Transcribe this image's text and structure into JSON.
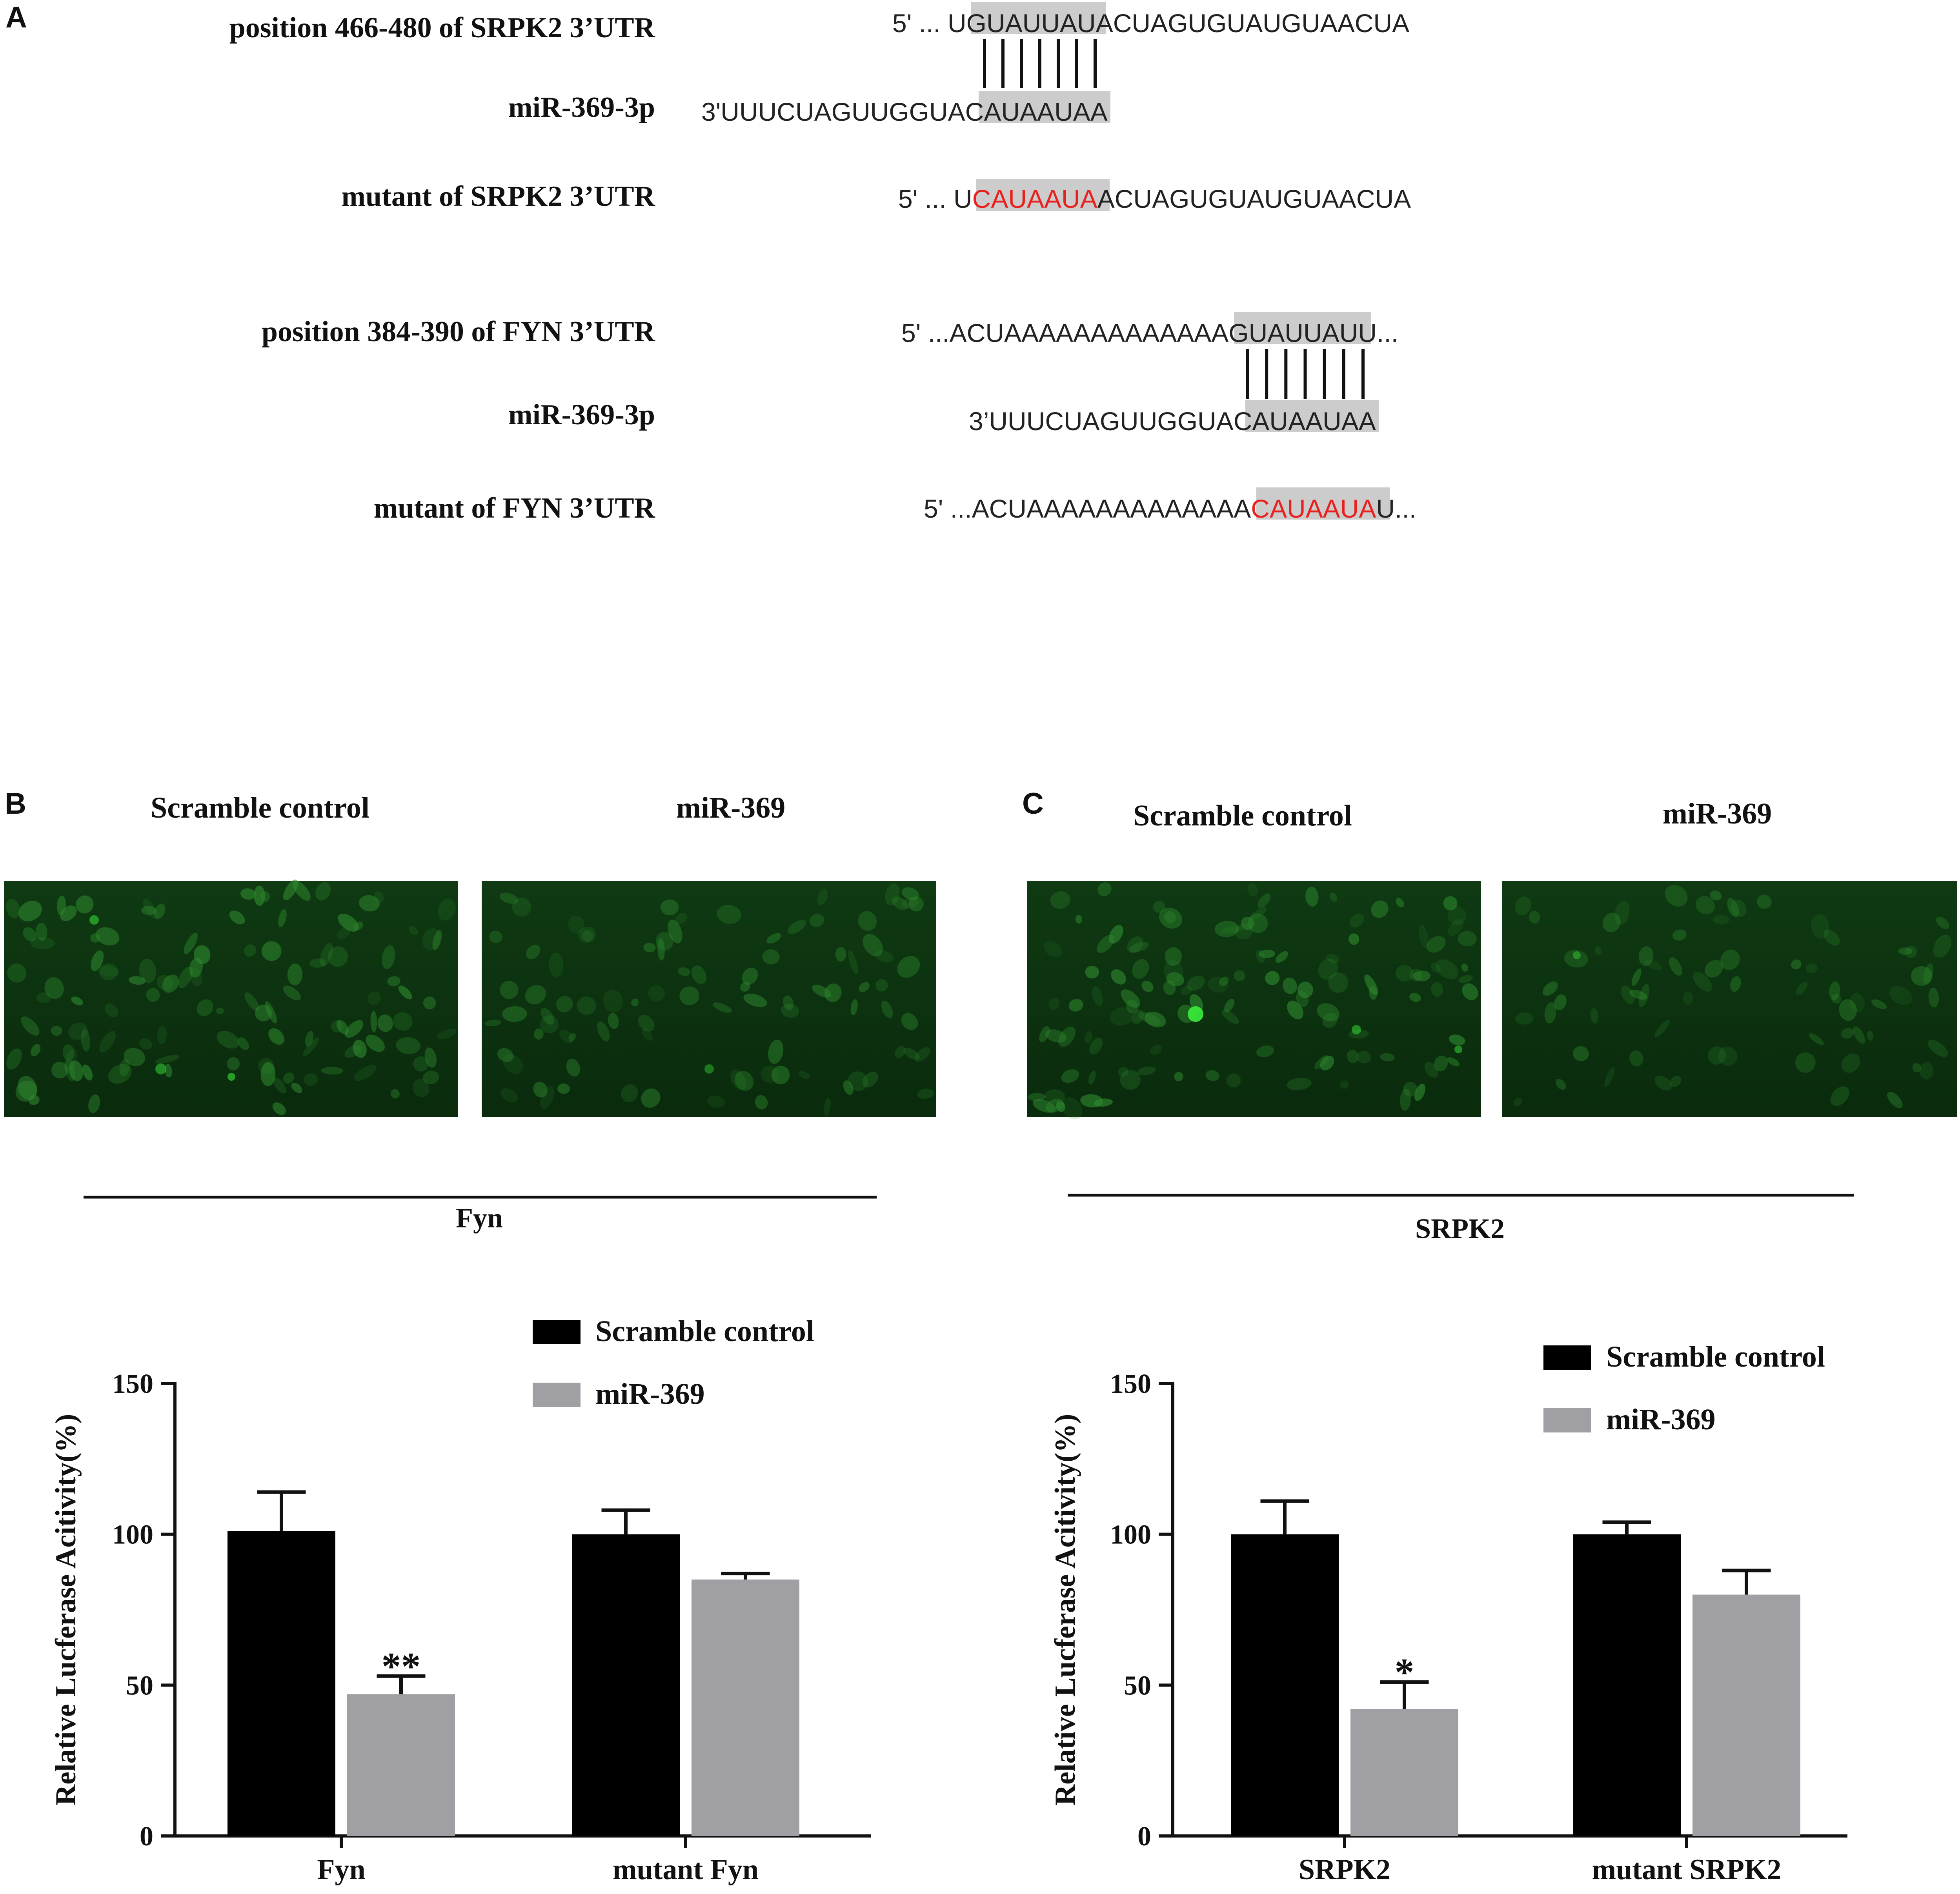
{
  "colors": {
    "scramble": "#000000",
    "mir": "#a0a0a4",
    "seed_box": "#cccccc",
    "mutation": "#e8201e",
    "micrograph_bg": "#0d3410",
    "cell": "#2f8a2f",
    "bright_cell": "#39e639"
  },
  "panel_a": {
    "letter": "A",
    "srpk2": {
      "utr_label": "position 466-480 of SRPK2 3’UTR",
      "utr_seq": {
        "prefix": "5' ... U",
        "seed": "GUAUUAU",
        "suffix": "ACUAGUGUAUGUAACUA"
      },
      "mir_label": "miR-369-3p",
      "mir_seq": {
        "prefix": "3'UUUCUAGUUGGUA",
        "seed": "CAUAAUA",
        "suffix": "A"
      },
      "mutant_label": "mutant of SRPK2 3’UTR",
      "mutant_seq": {
        "prefix": "5' ... U",
        "seed": "CAUAAUA",
        "suffix": "ACUAGUGUAUGUAACUA"
      }
    },
    "fyn": {
      "utr_label": "position 384-390 of FYN 3’UTR",
      "utr_seq": {
        "prefix": "5' ...ACUAAAAAAAAAAAAA",
        "seed": "GUAUUAU",
        "suffix": "U..."
      },
      "mir_label": "miR-369-3p",
      "mir_seq": {
        "prefix": "3’UUUCUAGUUGGUA",
        "seed": "CAUAAUA",
        "suffix": "A"
      },
      "mutant_label": "mutant of FYN 3’UTR",
      "mutant_seq": {
        "prefix": "5' ...ACUAAAAAAAAAAAAA",
        "seed": "CAUAAUA",
        "suffix": "U..."
      }
    }
  },
  "panel_b": {
    "letter": "B",
    "image_labels": [
      "Scramble control",
      "miR-369"
    ],
    "group_label": "Fyn"
  },
  "panel_c": {
    "letter": "C",
    "image_labels": [
      "Scramble control",
      "miR-369"
    ],
    "group_label": "SRPK2"
  },
  "chart_data": [
    {
      "type": "bar",
      "panel": "B",
      "ylabel": "Relative Lucferase Acitivity(%)",
      "ylim": [
        0,
        150
      ],
      "yticks": [
        0,
        50,
        100,
        150
      ],
      "categories": [
        "Fyn",
        "mutant Fyn"
      ],
      "legend_position": "top-right",
      "series": [
        {
          "name": "Scramble control",
          "values": [
            101,
            100
          ],
          "errors": [
            13,
            8
          ]
        },
        {
          "name": "miR-369",
          "values": [
            47,
            85
          ],
          "errors": [
            6,
            2
          ]
        }
      ],
      "annotations": [
        {
          "category": "Fyn",
          "series": "miR-369",
          "text": "**"
        }
      ]
    },
    {
      "type": "bar",
      "panel": "C",
      "ylabel": "Relative Lucferase Acitivity(%)",
      "ylim": [
        0,
        150
      ],
      "yticks": [
        0,
        50,
        100,
        150
      ],
      "categories": [
        "SRPK2",
        "mutant SRPK2"
      ],
      "legend_position": "top-right",
      "series": [
        {
          "name": "Scramble control",
          "values": [
            100,
            100
          ],
          "errors": [
            11,
            4
          ]
        },
        {
          "name": "miR-369",
          "values": [
            42,
            80
          ],
          "errors": [
            9,
            8
          ]
        }
      ],
      "annotations": [
        {
          "category": "SRPK2",
          "series": "miR-369",
          "text": "*"
        }
      ]
    }
  ]
}
